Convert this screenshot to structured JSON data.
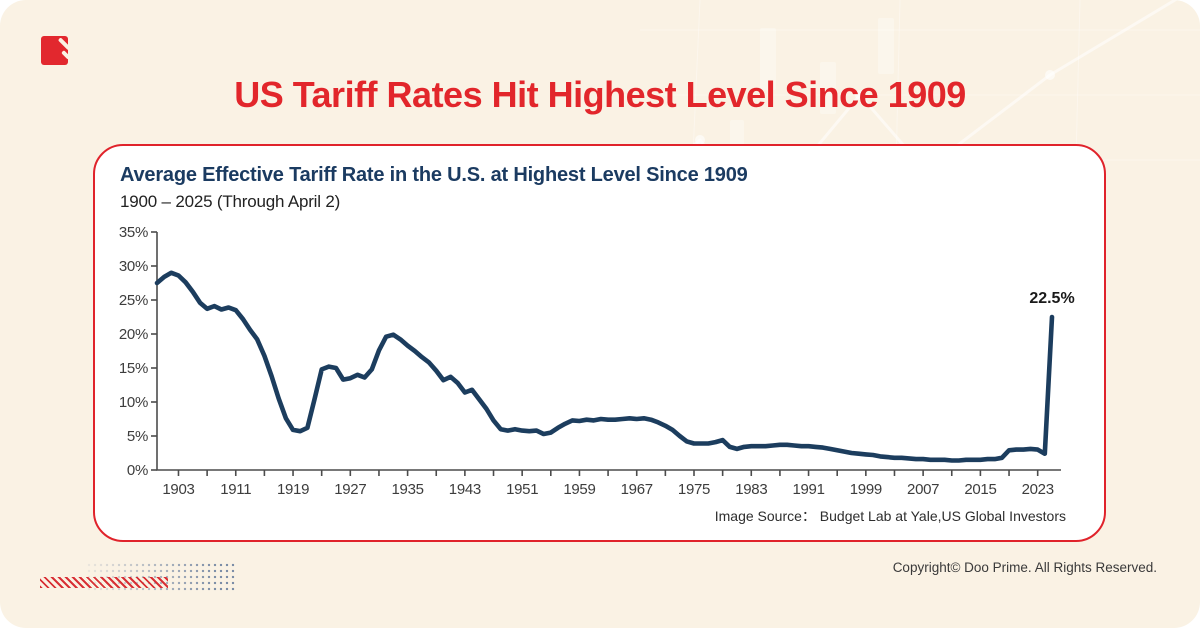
{
  "header": {
    "title": "US Tariff Rates Hit Highest Level Since 1909"
  },
  "card": {
    "source_label": "Image Source：",
    "source_value": " Budget Lab at Yale,US Global Investors"
  },
  "chart_data": {
    "type": "line",
    "title": "Average Effective Tariff Rate in the U.S. at Highest Level Since 1909",
    "subtitle": "1900 – 2025 (Through April 2)",
    "xlabel": "",
    "ylabel": "",
    "ylim": [
      0,
      35
    ],
    "y_tick_step": 5,
    "y_tick_suffix": "%",
    "x_start_year": 1900,
    "x_end_year": 2025,
    "x_label_ticks": [
      1903,
      1911,
      1919,
      1927,
      1935,
      1943,
      1951,
      1959,
      1967,
      1975,
      1983,
      1991,
      1999,
      2007,
      2015,
      2023
    ],
    "x_minor_tick_step": 4,
    "grid": false,
    "legend_position": "none",
    "line_color": "#1c3d5e",
    "annotation": {
      "year": 2025,
      "value": 22.5,
      "label": "22.5%"
    },
    "series": [
      {
        "name": "Average effective tariff rate (%)",
        "start_year": 1900,
        "values": [
          27.5,
          28.4,
          29.0,
          28.6,
          27.6,
          26.2,
          24.6,
          23.7,
          24.1,
          23.6,
          23.9,
          23.5,
          22.2,
          20.6,
          19.2,
          16.8,
          13.8,
          10.5,
          7.6,
          5.9,
          5.7,
          6.2,
          10.4,
          14.8,
          15.2,
          15.0,
          13.3,
          13.5,
          14.0,
          13.6,
          14.8,
          17.6,
          19.6,
          19.9,
          19.2,
          18.3,
          17.5,
          16.6,
          15.8,
          14.6,
          13.2,
          13.7,
          12.8,
          11.4,
          11.8,
          10.4,
          9.0,
          7.3,
          6.0,
          5.8,
          6.0,
          5.8,
          5.7,
          5.8,
          5.3,
          5.5,
          6.2,
          6.8,
          7.3,
          7.2,
          7.4,
          7.3,
          7.5,
          7.4,
          7.4,
          7.5,
          7.6,
          7.5,
          7.6,
          7.4,
          7.0,
          6.5,
          5.9,
          5.0,
          4.2,
          3.9,
          3.9,
          3.9,
          4.1,
          4.4,
          3.4,
          3.1,
          3.4,
          3.5,
          3.5,
          3.5,
          3.6,
          3.7,
          3.7,
          3.6,
          3.5,
          3.5,
          3.4,
          3.3,
          3.1,
          2.9,
          2.7,
          2.5,
          2.4,
          2.3,
          2.2,
          2.0,
          1.9,
          1.8,
          1.8,
          1.7,
          1.6,
          1.6,
          1.5,
          1.5,
          1.5,
          1.4,
          1.4,
          1.5,
          1.5,
          1.5,
          1.6,
          1.6,
          1.8,
          2.9,
          3.0,
          3.0,
          3.1,
          3.0,
          2.4,
          22.5
        ]
      }
    ]
  },
  "footer": {
    "copyright": "Copyright© Doo Prime. All Rights Reserved."
  },
  "colors": {
    "accent_red": "#e2262b",
    "navy": "#1b3b61",
    "background_cream": "#faf2e4"
  }
}
